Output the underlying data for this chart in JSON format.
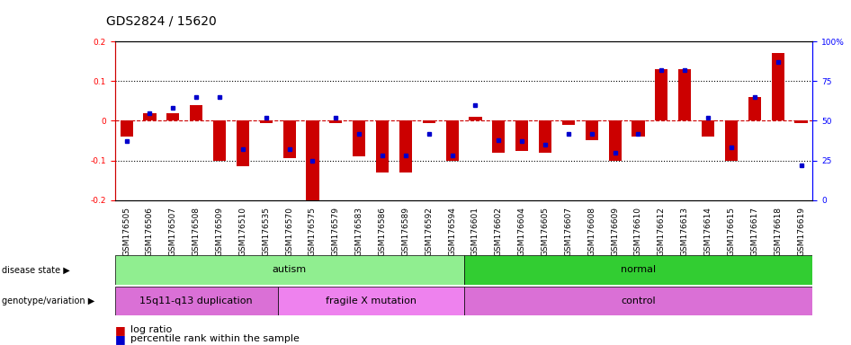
{
  "title": "GDS2824 / 15620",
  "samples": [
    "GSM176505",
    "GSM176506",
    "GSM176507",
    "GSM176508",
    "GSM176509",
    "GSM176510",
    "GSM176535",
    "GSM176570",
    "GSM176575",
    "GSM176579",
    "GSM176583",
    "GSM176586",
    "GSM176589",
    "GSM176592",
    "GSM176594",
    "GSM176601",
    "GSM176602",
    "GSM176604",
    "GSM176605",
    "GSM176607",
    "GSM176608",
    "GSM176609",
    "GSM176610",
    "GSM176612",
    "GSM176613",
    "GSM176614",
    "GSM176615",
    "GSM176617",
    "GSM176618",
    "GSM176619"
  ],
  "log_ratio": [
    -0.04,
    0.02,
    0.02,
    0.04,
    -0.1,
    -0.115,
    -0.005,
    -0.095,
    -0.205,
    -0.005,
    -0.09,
    -0.13,
    -0.13,
    -0.005,
    -0.1,
    0.01,
    -0.08,
    -0.075,
    -0.08,
    -0.01,
    -0.05,
    -0.1,
    -0.04,
    0.13,
    0.13,
    -0.04,
    -0.1,
    0.06,
    0.17,
    -0.005
  ],
  "percentile": [
    37,
    55,
    58,
    65,
    65,
    32,
    52,
    32,
    25,
    52,
    42,
    28,
    28,
    42,
    28,
    60,
    38,
    37,
    35,
    42,
    42,
    30,
    42,
    82,
    82,
    52,
    33,
    65,
    87,
    22
  ],
  "disease_state_groups": [
    {
      "label": "autism",
      "start": 0,
      "end": 14,
      "color": "#90EE90"
    },
    {
      "label": "normal",
      "start": 15,
      "end": 29,
      "color": "#32CD32"
    }
  ],
  "genotype_groups": [
    {
      "label": "15q11-q13 duplication",
      "start": 0,
      "end": 6,
      "color": "#DA70D6"
    },
    {
      "label": "fragile X mutation",
      "start": 7,
      "end": 14,
      "color": "#EE82EE"
    },
    {
      "label": "control",
      "start": 15,
      "end": 29,
      "color": "#DA70D6"
    }
  ],
  "ylim_left": [
    -0.2,
    0.2
  ],
  "ylim_right": [
    0,
    100
  ],
  "bar_color": "#CC0000",
  "dot_color": "#0000CC",
  "dashed_line_color": "#CC0000",
  "title_fontsize": 10,
  "tick_fontsize": 6.5,
  "label_fontsize": 8
}
